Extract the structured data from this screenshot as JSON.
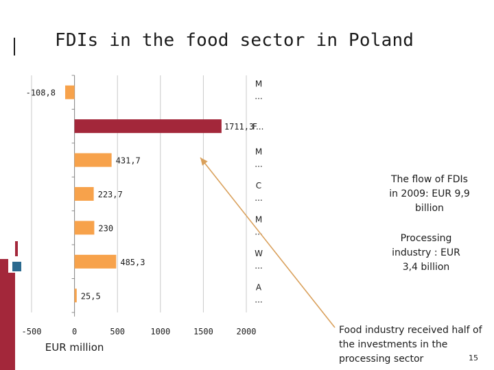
{
  "slide": {
    "title": "FDIs in the food sector in Poland",
    "notes": {
      "flow": "The flow of FDIs in 2009: EUR 9,9 billion",
      "processing": "Processing industry : EUR 3,4 billion",
      "food": "Food industry  received half of the investments in the processing sector"
    },
    "page_number": "15"
  },
  "colors": {
    "orange": "#F7A24B",
    "dark_red": "#A3273A",
    "deco_red": "#A3273A",
    "deco_blue": "#2B6A8F",
    "gridline": "#C8C8C8",
    "arrow": "#D9A05B"
  },
  "chart_data": {
    "type": "bar",
    "orientation": "horizontal",
    "title": "",
    "xlabel": "EUR million",
    "ylabel": "",
    "xlim": [
      -500,
      2000
    ],
    "xticks": [
      -500,
      0,
      500,
      1000,
      1500,
      2000
    ],
    "xtick_labels": [
      "-500",
      "0",
      "500",
      "1000",
      "1500",
      "2000"
    ],
    "categories": [
      "M ...",
      "F...",
      "M ...",
      "C ...",
      "M ...",
      "W ...",
      "A ..."
    ],
    "values": [
      -108.8,
      1711.3,
      431.7,
      223.7,
      230,
      485.3,
      25.5
    ],
    "value_labels": [
      "-108,8",
      "1711,3",
      "431,7",
      "223,7",
      "230",
      "485,3",
      "25,5"
    ],
    "highlight_index": 1,
    "grid": true
  }
}
